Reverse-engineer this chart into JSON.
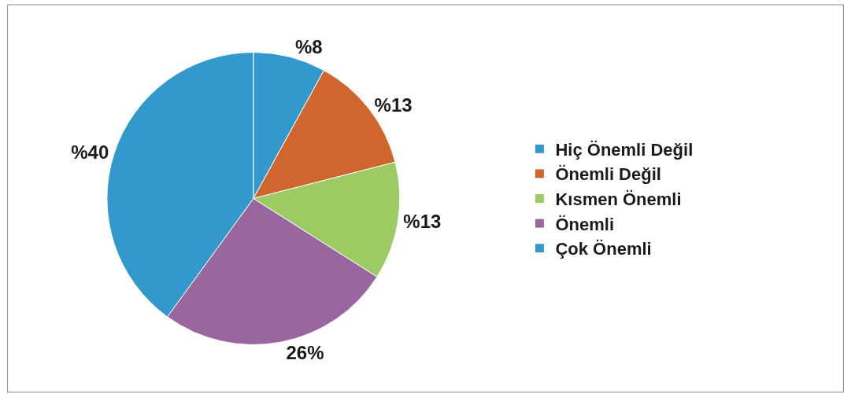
{
  "chart_data": {
    "type": "pie",
    "categories": [
      "Hiç Önemli Değil",
      "Önemli Değil",
      "Kısmen Önemli",
      "Önemli",
      "Çok Önemli"
    ],
    "values": [
      8,
      13,
      13,
      26,
      40
    ],
    "value_labels": [
      "%8",
      "%13",
      "%13",
      "26%",
      "%40"
    ],
    "colors": [
      "#3399cc",
      "#d0662e",
      "#9dcb63",
      "#99669f",
      "#3399cc"
    ],
    "legend": "right"
  }
}
